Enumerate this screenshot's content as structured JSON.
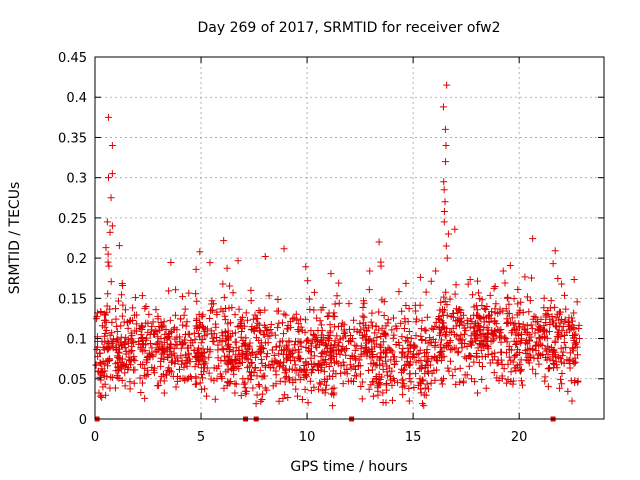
{
  "chart_data": {
    "type": "scatter",
    "title": "Day 269 of 2017, SRMTID for receiver ofw2",
    "xlabel": "GPS time / hours",
    "ylabel": "SRMTID / TECUs",
    "xlim": [
      0,
      24
    ],
    "ylim": [
      0,
      0.45
    ],
    "x_ticks": [
      0,
      5,
      10,
      15,
      20
    ],
    "y_ticks": [
      0,
      0.05,
      0.1,
      0.15,
      0.2,
      0.25,
      0.3,
      0.35,
      0.4,
      0.45
    ],
    "x_tick_labels": [
      "0",
      "5",
      "10",
      "15",
      "20"
    ],
    "y_tick_labels": [
      "0",
      "0.05",
      "0.1",
      "0.15",
      "0.2",
      "0.25",
      "0.3",
      "0.35",
      "0.4",
      "0.45"
    ],
    "grid": true,
    "marker": "+",
    "color": "#e00000",
    "series": [
      {
        "name": "SRMTID",
        "x_range": [
          0.05,
          22.85
        ],
        "point_count": 1900,
        "typical_range": [
          0.03,
          0.15
        ],
        "spikes": [
          {
            "x": 0.7,
            "values": [
              0.375,
              0.34,
              0.305,
              0.3,
              0.275,
              0.245,
              0.24,
              0.232,
              0.205,
              0.195,
              0.19
            ]
          },
          {
            "x": 13.5,
            "values": [
              0.22,
              0.195,
              0.19
            ]
          },
          {
            "x": 16.55,
            "values": [
              0.415,
              0.388,
              0.36,
              0.34,
              0.32,
              0.295,
              0.285,
              0.27,
              0.258,
              0.245,
              0.23,
              0.215,
              0.2
            ]
          }
        ]
      }
    ],
    "zero_markers_x": [
      0.1,
      7.1,
      7.6,
      12.1,
      21.6
    ]
  }
}
